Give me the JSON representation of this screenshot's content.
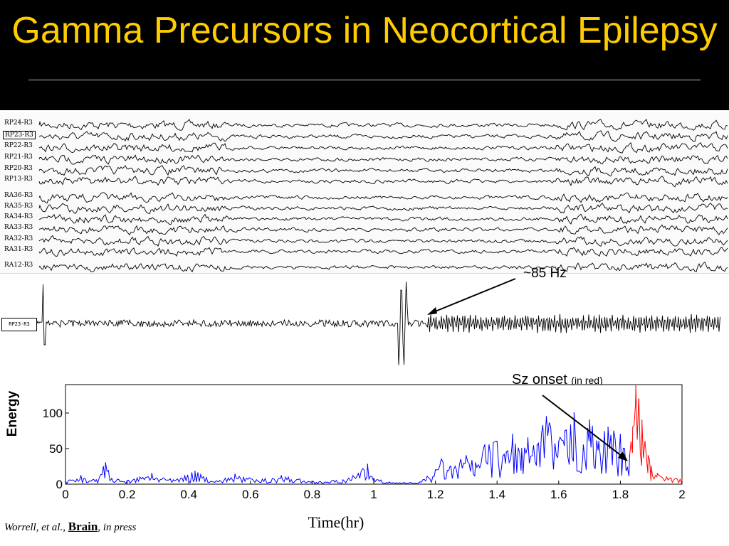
{
  "title": "Gamma Precursors in Neocortical Epilepsy",
  "colors": {
    "title_bar": "#000000",
    "title_text": "#ffcc00",
    "pre_seizure": "#0000ff",
    "seizure": "#ff0000"
  },
  "eeg": {
    "group1": [
      "RP24-R3",
      "RP23-R3",
      "RP22-R3",
      "RP21-R3",
      "RP20-R3",
      "RP13-R3"
    ],
    "group2": [
      "RA36-R3",
      "RA35-R3",
      "RA34-R3",
      "RA33-R3",
      "RA32-R3",
      "RA31-R3",
      "RA12-R3"
    ]
  },
  "annotations": {
    "hfo": "~85 Hz",
    "sz_onset": "Sz onset",
    "sz_onset_note": "(in red)"
  },
  "citation": {
    "authors": "Worrell, et al., ",
    "journal": "Brain",
    "status": ", in press"
  },
  "chart_data": {
    "type": "line",
    "xlabel": "Time(hr)",
    "ylabel": "Energy",
    "xlim": [
      0,
      2
    ],
    "ylim": [
      0,
      140
    ],
    "xticks": [
      0,
      0.2,
      0.4,
      0.6,
      0.8,
      1,
      1.2,
      1.4,
      1.6,
      1.8,
      2
    ],
    "yticks": [
      0,
      50,
      100
    ],
    "series": [
      {
        "color": "#0000ff",
        "x": [
          0,
          0.05,
          0.1,
          0.13,
          0.15,
          0.2,
          0.28,
          0.35,
          0.42,
          0.5,
          0.55,
          0.62,
          0.7,
          0.8,
          0.9,
          0.95,
          0.98,
          1.0,
          1.05,
          1.1,
          1.15,
          1.2,
          1.22,
          1.25,
          1.3,
          1.33,
          1.36,
          1.4,
          1.43,
          1.45,
          1.48,
          1.5,
          1.53,
          1.56,
          1.6,
          1.62,
          1.65,
          1.68,
          1.7,
          1.73,
          1.76,
          1.8,
          1.83
        ],
        "y": [
          4,
          12,
          6,
          30,
          8,
          5,
          15,
          6,
          18,
          5,
          14,
          6,
          12,
          4,
          6,
          15,
          28,
          8,
          3,
          2,
          3,
          20,
          35,
          25,
          40,
          30,
          55,
          60,
          45,
          70,
          50,
          65,
          55,
          95,
          60,
          75,
          100,
          55,
          90,
          60,
          80,
          70,
          40
        ]
      },
      {
        "color": "#ff0000",
        "x": [
          1.83,
          1.84,
          1.85,
          1.86,
          1.87,
          1.88,
          1.89,
          1.9,
          1.92,
          1.95,
          1.98,
          2.0
        ],
        "y": [
          40,
          80,
          138,
          120,
          90,
          60,
          40,
          25,
          15,
          10,
          8,
          6
        ]
      }
    ]
  }
}
